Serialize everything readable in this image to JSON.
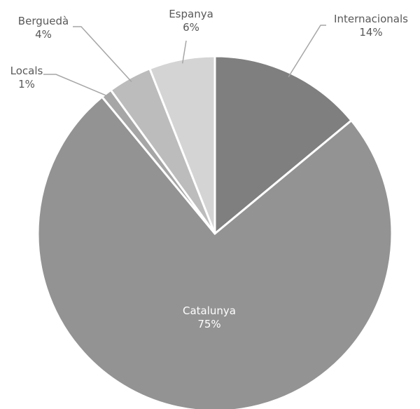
{
  "chart_data": {
    "type": "pie",
    "slices": [
      {
        "name": "Internacionals",
        "value": 14,
        "label": "14%",
        "color": "#7f7f7f"
      },
      {
        "name": "Catalunya",
        "value": 75,
        "label": "75%",
        "color": "#939393"
      },
      {
        "name": "Locals",
        "value": 1,
        "label": "1%",
        "color": "#a6a6a6"
      },
      {
        "name": "Berguedà",
        "value": 4,
        "label": "4%",
        "color": "#bcbcbc"
      },
      {
        "name": "Espanya",
        "value": 6,
        "label": "6%",
        "color": "#d4d4d4"
      }
    ],
    "start_angle_deg": 0,
    "direction": "clockwise",
    "legend": "none"
  }
}
